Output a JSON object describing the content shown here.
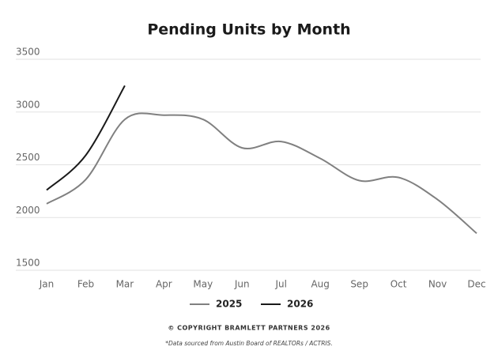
{
  "chart_data": {
    "type": "line",
    "title": "Pending Units by Month",
    "categories": [
      "Jan",
      "Feb",
      "Mar",
      "Apr",
      "May",
      "Jun",
      "Jul",
      "Aug",
      "Sep",
      "Oct",
      "Nov",
      "Dec"
    ],
    "series": [
      {
        "name": "2025",
        "color": "#808080",
        "values": [
          2130,
          2360,
          2930,
          2970,
          2930,
          2660,
          2720,
          2560,
          2350,
          2380,
          2170,
          1850
        ]
      },
      {
        "name": "2026",
        "color": "#1a1a1a",
        "values": [
          2260,
          2590,
          3250,
          null,
          null,
          null,
          null,
          null,
          null,
          null,
          null,
          null
        ]
      }
    ],
    "ylim": [
      1500,
      3500
    ],
    "yticks": [
      1500,
      2000,
      2500,
      3000,
      3500
    ],
    "grid": true,
    "annotations": [
      "© COPYRIGHT BRAMLETT PARTNERS 2026",
      "*Data sourced from Austin Board of REALTORs / ACTRIS."
    ]
  }
}
